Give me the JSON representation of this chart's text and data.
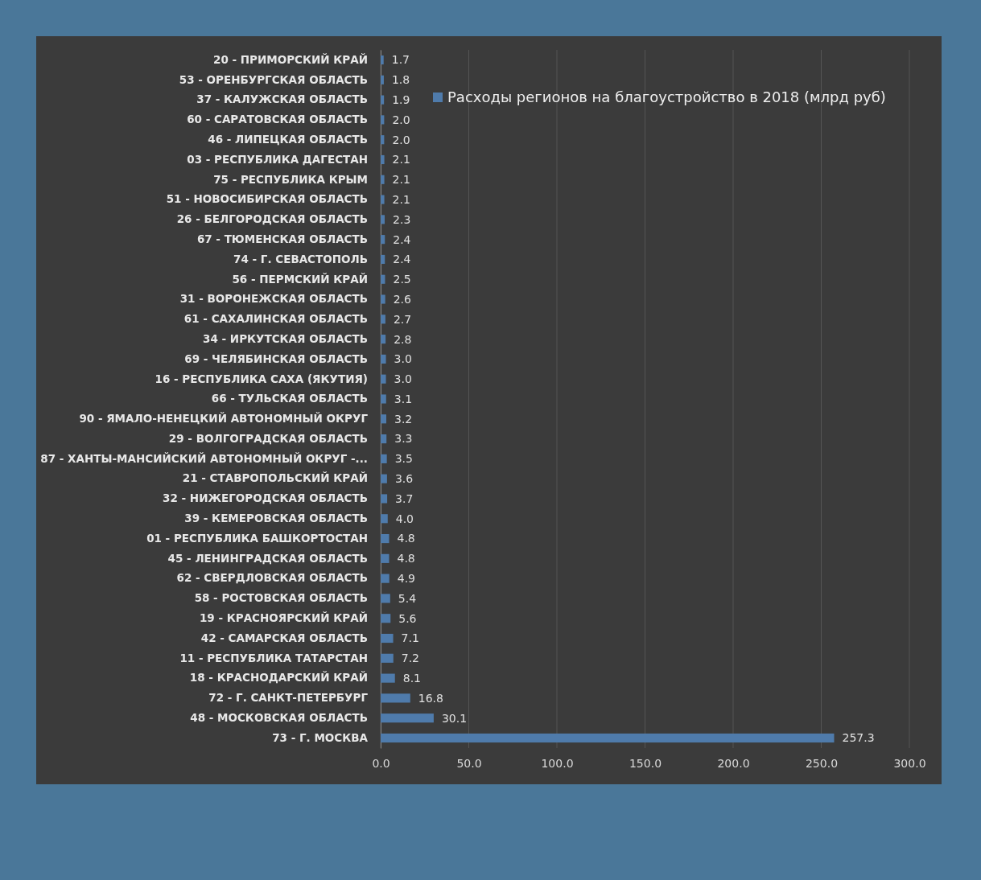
{
  "chart_data": {
    "type": "bar",
    "orientation": "horizontal",
    "categories": [
      "20 - ПРИМОРСКИЙ КРАЙ",
      "53 - ОРЕНБУРГСКАЯ ОБЛАСТЬ",
      "37 - КАЛУЖСКАЯ ОБЛАСТЬ",
      "60 - САРАТОВСКАЯ ОБЛАСТЬ",
      "46 - ЛИПЕЦКАЯ ОБЛАСТЬ",
      "03 - РЕСПУБЛИКА ДАГЕСТАН",
      "75 - РЕСПУБЛИКА КРЫМ",
      "51 - НОВОСИБИРСКАЯ ОБЛАСТЬ",
      "26 - БЕЛГОРОДСКАЯ ОБЛАСТЬ",
      "67 - ТЮМЕНСКАЯ ОБЛАСТЬ",
      "74 - Г. СЕВАСТОПОЛЬ",
      "56 - ПЕРМСКИЙ КРАЙ",
      "31 - ВОРОНЕЖСКАЯ ОБЛАСТЬ",
      "61 - САХАЛИНСКАЯ ОБЛАСТЬ",
      "34 - ИРКУТСКАЯ ОБЛАСТЬ",
      "69 - ЧЕЛЯБИНСКАЯ ОБЛАСТЬ",
      "16 - РЕСПУБЛИКА САХА (ЯКУТИЯ)",
      "66 - ТУЛЬСКАЯ ОБЛАСТЬ",
      "90 - ЯМАЛО-НЕНЕЦКИЙ АВТОНОМНЫЙ ОКРУГ",
      "29 - ВОЛГОГРАДСКАЯ ОБЛАСТЬ",
      "87 - ХАНТЫ-МАНСИЙСКИЙ АВТОНОМНЫЙ ОКРУГ -...",
      "21 - СТАВРОПОЛЬСКИЙ КРАЙ",
      "32 - НИЖЕГОРОДСКАЯ ОБЛАСТЬ",
      "39 - КЕМЕРОВСКАЯ ОБЛАСТЬ",
      "01 - РЕСПУБЛИКА БАШКОРТОСТАН",
      "45 - ЛЕНИНГРАДСКАЯ ОБЛАСТЬ",
      "62 - СВЕРДЛОВСКАЯ ОБЛАСТЬ",
      "58 - РОСТОВСКАЯ ОБЛАСТЬ",
      "19 - КРАСНОЯРСКИЙ КРАЙ",
      "42 - САМАРСКАЯ ОБЛАСТЬ",
      "11 - РЕСПУБЛИКА ТАТАРСТАН",
      "18 - КРАСНОДАРСКИЙ КРАЙ",
      "72 - Г. САНКТ-ПЕТЕРБУРГ",
      "48 - МОСКОВСКАЯ ОБЛАСТЬ",
      "73 - Г. МОСКВА"
    ],
    "series": [
      {
        "name": "Расходы регионов на благоустройство в 2018 (млрд руб)",
        "color": "#4f7bab",
        "values": [
          1.7,
          1.8,
          1.9,
          2.0,
          2.0,
          2.1,
          2.1,
          2.1,
          2.3,
          2.4,
          2.4,
          2.5,
          2.6,
          2.7,
          2.8,
          3.0,
          3.0,
          3.1,
          3.2,
          3.3,
          3.5,
          3.6,
          3.7,
          4.0,
          4.8,
          4.8,
          4.9,
          5.4,
          5.6,
          7.1,
          7.2,
          8.1,
          16.8,
          30.1,
          257.3
        ],
        "value_labels": [
          "1.7",
          "1.8",
          "1.9",
          "2.0",
          "2.0",
          "2.1",
          "2.1",
          "2.1",
          "2.3",
          "2.4",
          "2.4",
          "2.5",
          "2.6",
          "2.7",
          "2.8",
          "3.0",
          "3.0",
          "3.1",
          "3.2",
          "3.3",
          "3.5",
          "3.6",
          "3.7",
          "4.0",
          "4.8",
          "4.8",
          "4.9",
          "5.4",
          "5.6",
          "7.1",
          "7.2",
          "8.1",
          "16.8",
          "30.1",
          "257.3"
        ]
      }
    ],
    "xlim": [
      0,
      300
    ],
    "xticks": [
      {
        "value": 0,
        "label": "0.0"
      },
      {
        "value": 50,
        "label": "50.0"
      },
      {
        "value": 100,
        "label": "100.0"
      },
      {
        "value": 150,
        "label": "150.0"
      },
      {
        "value": 200,
        "label": "200.0"
      },
      {
        "value": 250,
        "label": "250.0"
      },
      {
        "value": 300,
        "label": "300.0"
      }
    ],
    "grid": "x",
    "legend": "top right"
  }
}
